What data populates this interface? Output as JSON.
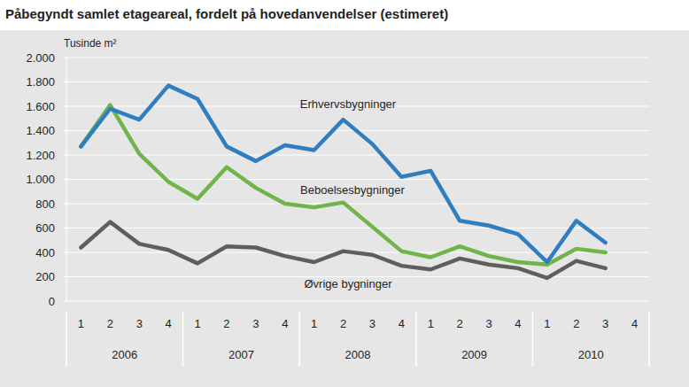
{
  "chart_data": {
    "type": "line",
    "title": "Påbegyndt samlet etageareal, fordelt på hovedanvendelser (estimeret)",
    "y_label": "Tusinde m²",
    "categories": [
      "1",
      "2",
      "3",
      "4",
      "1",
      "2",
      "3",
      "4",
      "1",
      "2",
      "3",
      "4",
      "1",
      "2",
      "3",
      "4",
      "1",
      "2",
      "3",
      "4"
    ],
    "x_groups": [
      "2006",
      "2007",
      "2008",
      "2009",
      "2010"
    ],
    "series": [
      {
        "name": "Erhvervsbygninger",
        "color": "#2f7ec0",
        "values": [
          1270,
          1580,
          1490,
          1770,
          1660,
          1270,
          1150,
          1280,
          1240,
          1490,
          1290,
          1020,
          1070,
          660,
          620,
          550,
          320,
          660,
          480,
          null
        ]
      },
      {
        "name": "Beboelsesbygninger",
        "color": "#6fb54a",
        "values": [
          1270,
          1610,
          1210,
          980,
          840,
          1100,
          930,
          800,
          770,
          810,
          610,
          410,
          360,
          450,
          370,
          320,
          300,
          430,
          400,
          null
        ]
      },
      {
        "name": "Øvrige bygninger",
        "color": "#5e5e5e",
        "values": [
          440,
          650,
          470,
          420,
          310,
          450,
          440,
          370,
          320,
          410,
          380,
          290,
          260,
          350,
          300,
          270,
          190,
          330,
          270,
          null
        ]
      }
    ],
    "ylim": [
      0,
      2000
    ],
    "yticks": [
      0,
      200,
      400,
      600,
      800,
      {
        "value": 1000,
        "label": "1.000"
      },
      {
        "value": 1200,
        "label": "1.200"
      },
      {
        "value": 1400,
        "label": "1.400"
      },
      {
        "value": 1600,
        "label": "1.600"
      },
      {
        "value": 1800,
        "label": "1.800"
      },
      {
        "value": 2000,
        "label": "2.000"
      }
    ],
    "grid": true
  }
}
